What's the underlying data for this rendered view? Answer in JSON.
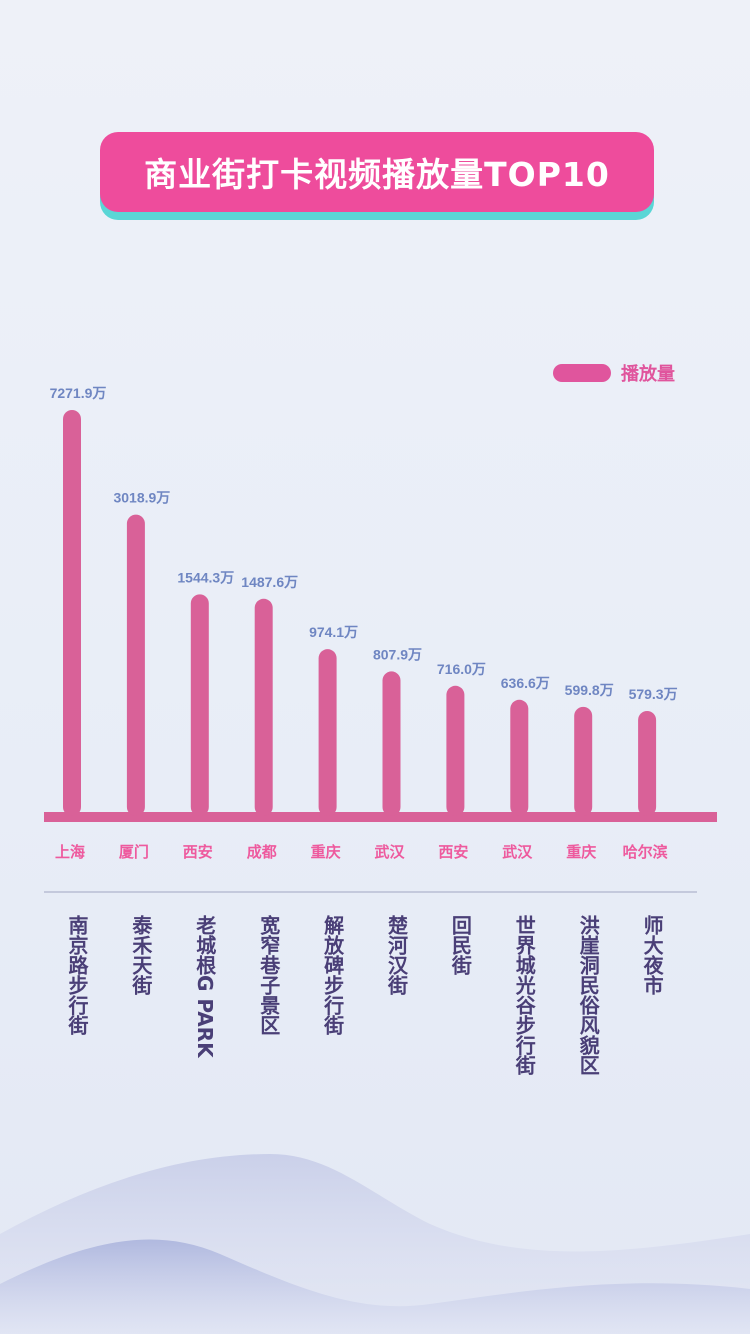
{
  "title": "商业街打卡视频播放量TOP10",
  "colors": {
    "bar": "#d96198",
    "value_label": "#6f86c2",
    "city_label": "#ee5a9e",
    "street_label": "#4a3f77",
    "title_bg": "#ee4c9c",
    "title_shadow": "#5ad6d6"
  },
  "chart_data": {
    "type": "bar",
    "legend": {
      "label": "播放量",
      "position": "top-right"
    },
    "categories": [
      "南京路步行街",
      "泰禾天街",
      "老城根G PARK",
      "宽窄巷子景区",
      "解放碑步行街",
      "楚河汉街",
      "回民街",
      "世界城光谷步行街",
      "洪崖洞民俗风貌区",
      "师大夜市"
    ],
    "cities": [
      "上海",
      "厦门",
      "西安",
      "成都",
      "重庆",
      "武汉",
      "西安",
      "武汉",
      "重庆",
      "哈尔滨"
    ],
    "values": [
      7271.9,
      3018.9,
      1544.3,
      1487.6,
      974.1,
      807.9,
      716.0,
      636.6,
      599.8,
      579.3
    ],
    "value_labels": [
      "7271.9万",
      "3018.9万",
      "1544.3万",
      "1487.6万",
      "974.1万",
      "807.9万",
      "716.0万",
      "636.6万",
      "599.8万",
      "579.3万"
    ],
    "grid": false
  }
}
